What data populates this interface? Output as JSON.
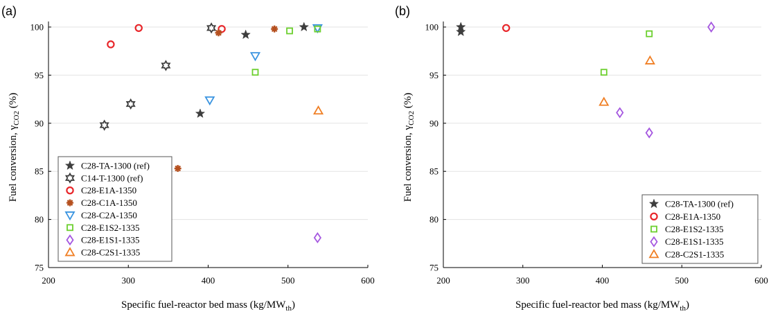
{
  "chart_data": [
    {
      "type": "scatter",
      "panel_label": "(a)",
      "xlabel": "Specific fuel-reactor bed mass (kg/MW",
      "xlabel_sub": "th",
      "xlabel_end": ")",
      "ylabel": "Fuel conversion, γ",
      "ylabel_sub": "CO2",
      "ylabel_end": " (%)",
      "xlim": [
        200,
        600
      ],
      "ylim": [
        75,
        100
      ],
      "xticks": [
        200,
        300,
        400,
        500,
        600
      ],
      "yticks": [
        75,
        80,
        85,
        90,
        95,
        100
      ],
      "grid": true,
      "legend_position": "bottom-left",
      "series": [
        {
          "name": "C28-TA-1300 (ref)",
          "marker": "star5",
          "color": "#3d3d3d",
          "points": [
            [
              390,
              91.0
            ],
            [
              447,
              99.2
            ],
            [
              520,
              100.0
            ]
          ]
        },
        {
          "name": "C14-T-1300 (ref)",
          "marker": "star6",
          "color": "#3d3d3d",
          "points": [
            [
              270,
              89.8
            ],
            [
              303,
              92.0
            ],
            [
              347,
              96.0
            ],
            [
              404,
              99.9
            ]
          ]
        },
        {
          "name": "C28-E1A-1350",
          "marker": "circle",
          "color": "#e8262a",
          "points": [
            [
              278,
              98.2
            ],
            [
              313,
              99.9
            ],
            [
              417,
              99.8
            ]
          ]
        },
        {
          "name": "C28-C1A-1350",
          "marker": "asterisk",
          "color": "#b5501f",
          "points": [
            [
              362,
              85.3
            ],
            [
              413,
              99.4
            ],
            [
              483,
              99.8
            ]
          ]
        },
        {
          "name": "C28-C2A-1350",
          "marker": "triangle-down",
          "color": "#3a94e0",
          "points": [
            [
              402,
              92.4
            ],
            [
              459,
              97.0
            ],
            [
              537,
              99.9
            ]
          ]
        },
        {
          "name": "C28-E1S2-1335",
          "marker": "square",
          "color": "#6ccf2e",
          "points": [
            [
              459,
              95.3
            ],
            [
              502,
              99.6
            ],
            [
              537,
              99.8
            ]
          ]
        },
        {
          "name": "C28-E1S1-1335",
          "marker": "diamond",
          "color": "#a557e0",
          "points": [
            [
              537,
              78.1
            ]
          ]
        },
        {
          "name": "C28-C2S1-1335",
          "marker": "triangle-up",
          "color": "#f07f24",
          "points": [
            [
              538,
              91.3
            ]
          ]
        }
      ]
    },
    {
      "type": "scatter",
      "panel_label": "(b)",
      "xlabel": "Specific fuel-reactor bed mass (kg/MW",
      "xlabel_sub": "th",
      "xlabel_end": ")",
      "ylabel": "Fuel conversion, γ",
      "ylabel_sub": "CO2",
      "ylabel_end": " (%)",
      "xlim": [
        200,
        600
      ],
      "ylim": [
        75,
        100
      ],
      "xticks": [
        200,
        300,
        400,
        500,
        600
      ],
      "yticks": [
        75,
        80,
        85,
        90,
        95,
        100
      ],
      "grid": true,
      "legend_position": "bottom-right",
      "series": [
        {
          "name": "C28-TA-1300 (ref)",
          "marker": "star5",
          "color": "#3d3d3d",
          "points": [
            [
              222,
              100.0
            ],
            [
              222,
              99.5
            ]
          ]
        },
        {
          "name": "C28-E1A-1350",
          "marker": "circle",
          "color": "#e8262a",
          "points": [
            [
              279,
              99.9
            ]
          ]
        },
        {
          "name": "C28-E1S2-1335",
          "marker": "square",
          "color": "#6ccf2e",
          "points": [
            [
              402,
              95.3
            ],
            [
              459,
              99.3
            ]
          ]
        },
        {
          "name": "C28-E1S1-1335",
          "marker": "diamond",
          "color": "#a557e0",
          "points": [
            [
              422,
              91.1
            ],
            [
              459,
              89.0
            ],
            [
              537,
              100.0
            ]
          ]
        },
        {
          "name": "C28-C2S1-1335",
          "marker": "triangle-up",
          "color": "#f07f24",
          "points": [
            [
              402,
              92.2
            ],
            [
              460,
              96.5
            ]
          ]
        }
      ]
    }
  ]
}
